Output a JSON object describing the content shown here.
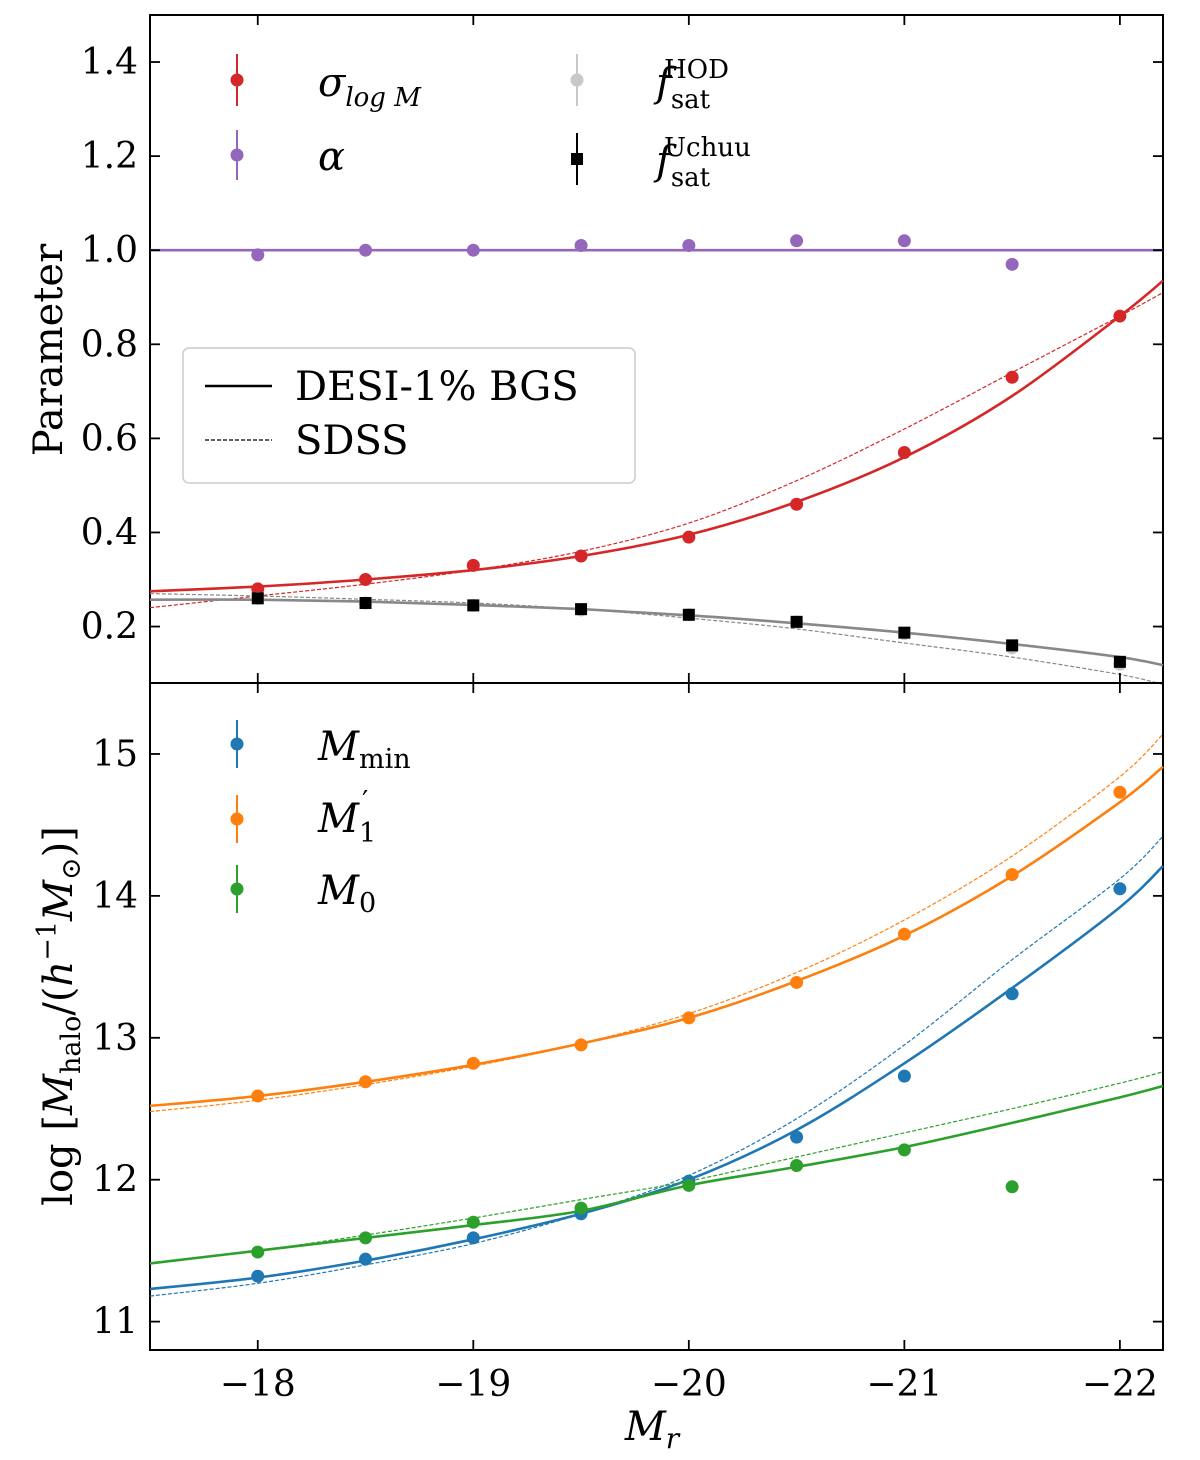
{
  "chart_data": [
    {
      "type": "scatter",
      "panel": "top",
      "ylabel": "Parameter",
      "xlabel": "",
      "xlim": [
        -17.5,
        -22.2
      ],
      "ylim": [
        0.08,
        1.5
      ],
      "yticks": [
        0.2,
        0.4,
        0.6,
        0.8,
        1.0,
        1.2,
        1.4
      ],
      "ytick_labels": [
        "0.2",
        "0.4",
        "0.6",
        "0.8",
        "1.0",
        "1.2",
        "1.4"
      ],
      "x": [
        -18,
        -18.5,
        -19,
        -19.5,
        -20,
        -20.5,
        -21,
        -21.5,
        -22
      ],
      "series": [
        {
          "name": "sigma_logM",
          "color": "#d62728",
          "marker": "circle",
          "values": [
            0.28,
            0.3,
            0.33,
            0.35,
            0.39,
            0.46,
            0.57,
            0.73,
            0.86
          ]
        },
        {
          "name": "alpha",
          "color": "#9467bd",
          "marker": "circle",
          "values": [
            0.99,
            1.0,
            1.0,
            1.01,
            1.01,
            1.02,
            1.02,
            0.97,
            null
          ]
        },
        {
          "name": "f_sat_HOD",
          "color": "#c8c8c8",
          "marker": "circle",
          "values": [
            0.26,
            0.25,
            0.245,
            0.235,
            0.225,
            0.21,
            0.185,
            0.155,
            0.12
          ]
        },
        {
          "name": "f_sat_Uchuu",
          "color": "#000000",
          "marker": "square",
          "values": [
            0.26,
            0.25,
            0.245,
            0.237,
            0.225,
            0.21,
            0.187,
            0.16,
            0.125
          ],
          "errors": [
            0.012,
            0.012,
            0.012,
            0.012,
            0.012,
            0.012,
            0.012,
            0.012,
            0.012
          ]
        }
      ],
      "curves": [
        {
          "name": "sigma_logM DESI",
          "color": "#d62728",
          "style": "solid",
          "x": [
            -17.5,
            -18,
            -18.5,
            -19,
            -19.5,
            -20,
            -20.5,
            -21,
            -21.5,
            -22,
            -22.2
          ],
          "y": [
            0.275,
            0.285,
            0.3,
            0.32,
            0.35,
            0.395,
            0.465,
            0.56,
            0.69,
            0.86,
            0.935
          ]
        },
        {
          "name": "sigma_logM SDSS",
          "color": "#d62728",
          "style": "dashed",
          "x": [
            -17.5,
            -18,
            -18.5,
            -19,
            -19.5,
            -20,
            -20.5,
            -21,
            -21.5,
            -22,
            -22.2
          ],
          "y": [
            0.24,
            0.265,
            0.29,
            0.32,
            0.36,
            0.42,
            0.51,
            0.62,
            0.74,
            0.86,
            0.91
          ]
        },
        {
          "name": "alpha",
          "color": "#9467bd",
          "style": "solid",
          "x": [
            -17.5,
            -22.2
          ],
          "y": [
            1.0,
            1.0
          ]
        },
        {
          "name": "f_sat DESI",
          "color": "#888888",
          "style": "solid",
          "x": [
            -17.5,
            -18,
            -18.5,
            -19,
            -19.5,
            -20,
            -20.5,
            -21,
            -21.5,
            -22,
            -22.2
          ],
          "y": [
            0.257,
            0.257,
            0.253,
            0.246,
            0.237,
            0.224,
            0.207,
            0.187,
            0.163,
            0.135,
            0.118
          ]
        },
        {
          "name": "f_sat SDSS",
          "color": "#888888",
          "style": "dashed",
          "x": [
            -17.5,
            -18,
            -18.5,
            -19,
            -19.5,
            -20,
            -20.5,
            -21,
            -21.5,
            -22,
            -22.2
          ],
          "y": [
            0.27,
            0.265,
            0.258,
            0.25,
            0.237,
            0.218,
            0.195,
            0.165,
            0.135,
            0.098,
            0.077
          ]
        }
      ],
      "legend_series": [
        {
          "symbol": "σ",
          "sub": "log M",
          "color": "#d62728",
          "marker": "circle"
        },
        {
          "symbol": "α",
          "sub": "",
          "color": "#9467bd",
          "marker": "circle"
        },
        {
          "symbol": "f",
          "sub": "sat",
          "sup": "HOD",
          "color": "#c8c8c8",
          "marker": "circle"
        },
        {
          "symbol": "f",
          "sub": "sat",
          "sup": "Uchuu",
          "color": "#000000",
          "marker": "square"
        }
      ],
      "legend_lines": [
        {
          "label": "DESI-1% BGS",
          "style": "solid"
        },
        {
          "label": "SDSS",
          "style": "dashed"
        }
      ]
    },
    {
      "type": "scatter",
      "panel": "bottom",
      "ylabel_main": "log [",
      "ylabel_symbol": "M",
      "ylabel_sub": "halo",
      "ylabel_mid": "/(",
      "ylabel_h": "h",
      "ylabel_exp": "−1",
      "ylabel_m": "M",
      "ylabel_sun": "⊙",
      "ylabel_end": ")]",
      "xlabel_symbol": "M",
      "xlabel_sub": "r",
      "xlim": [
        -17.5,
        -22.2
      ],
      "ylim": [
        10.8,
        15.5
      ],
      "xticks": [
        -18,
        -19,
        -20,
        -21,
        -22
      ],
      "xtick_labels": [
        "−18",
        "−19",
        "−20",
        "−21",
        "−22"
      ],
      "yticks": [
        11,
        12,
        13,
        14,
        15
      ],
      "ytick_labels": [
        "11",
        "12",
        "13",
        "14",
        "15"
      ],
      "x": [
        -18,
        -18.5,
        -19,
        -19.5,
        -20,
        -20.5,
        -21,
        -21.5,
        -22
      ],
      "series": [
        {
          "name": "M_min",
          "color": "#1f77b4",
          "marker": "circle",
          "values": [
            11.32,
            11.44,
            11.59,
            11.76,
            11.99,
            12.3,
            12.73,
            13.31,
            14.05
          ]
        },
        {
          "name": "M1_prime",
          "color": "#ff7f0e",
          "marker": "circle",
          "values": [
            12.59,
            12.69,
            12.82,
            12.95,
            13.14,
            13.39,
            13.73,
            14.15,
            14.73
          ]
        },
        {
          "name": "M_0",
          "color": "#2ca02c",
          "marker": "circle",
          "values": [
            11.49,
            11.59,
            11.7,
            11.8,
            11.96,
            12.1,
            12.21,
            11.95,
            null
          ]
        }
      ],
      "curves": [
        {
          "name": "M_min DESI",
          "color": "#1f77b4",
          "style": "solid",
          "x": [
            -17.5,
            -18,
            -18.5,
            -19,
            -19.5,
            -20,
            -20.5,
            -21,
            -21.5,
            -22,
            -22.2
          ],
          "y": [
            11.23,
            11.31,
            11.43,
            11.58,
            11.76,
            12.0,
            12.35,
            12.82,
            13.35,
            13.92,
            14.21
          ]
        },
        {
          "name": "M_min SDSS",
          "color": "#1f77b4",
          "style": "dashed",
          "x": [
            -17.5,
            -18,
            -18.5,
            -19,
            -19.5,
            -20,
            -20.5,
            -21,
            -21.5,
            -22,
            -22.2
          ],
          "y": [
            11.18,
            11.27,
            11.4,
            11.55,
            11.76,
            12.03,
            12.43,
            12.95,
            13.55,
            14.12,
            14.42
          ]
        },
        {
          "name": "M1 DESI",
          "color": "#ff7f0e",
          "style": "solid",
          "x": [
            -17.5,
            -18,
            -18.5,
            -19,
            -19.5,
            -20,
            -20.5,
            -21,
            -21.5,
            -22,
            -22.2
          ],
          "y": [
            12.52,
            12.59,
            12.69,
            12.81,
            12.96,
            13.14,
            13.4,
            13.72,
            14.14,
            14.66,
            14.91
          ]
        },
        {
          "name": "M1 SDSS",
          "color": "#ff7f0e",
          "style": "dashed",
          "x": [
            -17.5,
            -18,
            -18.5,
            -19,
            -19.5,
            -20,
            -20.5,
            -21,
            -21.5,
            -22,
            -22.2
          ],
          "y": [
            12.48,
            12.56,
            12.67,
            12.8,
            12.96,
            13.17,
            13.46,
            13.83,
            14.28,
            14.84,
            15.14
          ]
        },
        {
          "name": "M0 DESI",
          "color": "#2ca02c",
          "style": "solid",
          "x": [
            -17.5,
            -18,
            -18.5,
            -19,
            -19.5,
            -20,
            -20.5,
            -21,
            -21.5,
            -22,
            -22.2
          ],
          "y": [
            11.41,
            11.5,
            11.59,
            11.68,
            11.78,
            11.96,
            12.09,
            12.23,
            12.4,
            12.58,
            12.66
          ]
        },
        {
          "name": "M0 SDSS",
          "color": "#2ca02c",
          "style": "dashed",
          "x": [
            -17.5,
            -18,
            -18.5,
            -19,
            -19.5,
            -20,
            -20.5,
            -21,
            -21.5,
            -22,
            -22.2
          ],
          "y": [
            11.41,
            11.5,
            11.61,
            11.73,
            11.86,
            11.99,
            12.16,
            12.33,
            12.5,
            12.68,
            12.76
          ]
        }
      ],
      "legend_series": [
        {
          "symbol": "M",
          "sub": "min",
          "sup": "",
          "color": "#1f77b4",
          "marker": "circle"
        },
        {
          "symbol": "M",
          "sub": "1",
          "sup": "′",
          "color": "#ff7f0e",
          "marker": "circle"
        },
        {
          "symbol": "M",
          "sub": "0",
          "sup": "",
          "color": "#2ca02c",
          "marker": "circle"
        }
      ]
    }
  ]
}
